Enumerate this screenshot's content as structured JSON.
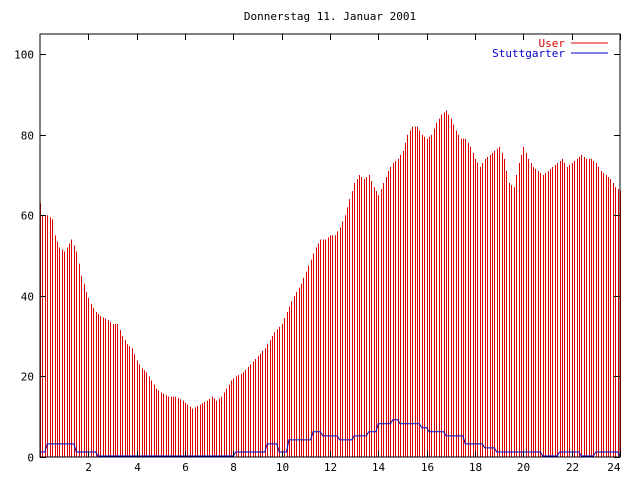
{
  "chart_data": {
    "type": "bar",
    "title": "Donnerstag 11. Januar 2001",
    "xlabel": "",
    "ylabel": "",
    "xlim": [
      0,
      24
    ],
    "ylim": [
      0,
      105
    ],
    "xticks": [
      2,
      4,
      6,
      8,
      10,
      12,
      14,
      16,
      18,
      20,
      22,
      24
    ],
    "yticks": [
      0,
      20,
      40,
      60,
      80,
      100
    ],
    "grid": false,
    "legend": "top-right",
    "x_step_hours": 0.1,
    "series": [
      {
        "name": "User",
        "type": "bar",
        "color": "#dd0000",
        "keypoints": [
          [
            0,
            63
          ],
          [
            0.1,
            60
          ],
          [
            0.3,
            60
          ],
          [
            0.5,
            59
          ],
          [
            0.6,
            55
          ],
          [
            0.8,
            52
          ],
          [
            1.0,
            51
          ],
          [
            1.2,
            53
          ],
          [
            1.3,
            54
          ],
          [
            1.5,
            51
          ],
          [
            1.7,
            45
          ],
          [
            1.9,
            41
          ],
          [
            2.1,
            38
          ],
          [
            2.3,
            36
          ],
          [
            2.5,
            35
          ],
          [
            2.8,
            34
          ],
          [
            3.0,
            33
          ],
          [
            3.2,
            33
          ],
          [
            3.4,
            30
          ],
          [
            3.6,
            28
          ],
          [
            3.8,
            27
          ],
          [
            4.0,
            24
          ],
          [
            4.2,
            22
          ],
          [
            4.4,
            21
          ],
          [
            4.6,
            19
          ],
          [
            4.8,
            17
          ],
          [
            5.0,
            16
          ],
          [
            5.3,
            15
          ],
          [
            5.6,
            15
          ],
          [
            5.9,
            14
          ],
          [
            6.1,
            13
          ],
          [
            6.3,
            12
          ],
          [
            6.6,
            13
          ],
          [
            6.9,
            14
          ],
          [
            7.1,
            15
          ],
          [
            7.3,
            14
          ],
          [
            7.5,
            15
          ],
          [
            7.7,
            17
          ],
          [
            7.9,
            19
          ],
          [
            8.1,
            20
          ],
          [
            8.4,
            21
          ],
          [
            8.7,
            23
          ],
          [
            9.0,
            25
          ],
          [
            9.3,
            27
          ],
          [
            9.5,
            29
          ],
          [
            9.7,
            31
          ],
          [
            10.0,
            33
          ],
          [
            10.2,
            36
          ],
          [
            10.5,
            40
          ],
          [
            10.8,
            43
          ],
          [
            11.0,
            46
          ],
          [
            11.2,
            49
          ],
          [
            11.4,
            52
          ],
          [
            11.6,
            54
          ],
          [
            11.8,
            54
          ],
          [
            12.0,
            55
          ],
          [
            12.2,
            55
          ],
          [
            12.4,
            57
          ],
          [
            12.6,
            60
          ],
          [
            12.8,
            64
          ],
          [
            13.0,
            68
          ],
          [
            13.2,
            70
          ],
          [
            13.4,
            69
          ],
          [
            13.6,
            70
          ],
          [
            13.8,
            67
          ],
          [
            14.0,
            65
          ],
          [
            14.2,
            68
          ],
          [
            14.4,
            71
          ],
          [
            14.6,
            73
          ],
          [
            14.8,
            74
          ],
          [
            15.0,
            76
          ],
          [
            15.2,
            80
          ],
          [
            15.4,
            82
          ],
          [
            15.6,
            82
          ],
          [
            15.8,
            80
          ],
          [
            16.0,
            79
          ],
          [
            16.2,
            80
          ],
          [
            16.4,
            83
          ],
          [
            16.6,
            85
          ],
          [
            16.8,
            86
          ],
          [
            17.0,
            84
          ],
          [
            17.2,
            81
          ],
          [
            17.4,
            79
          ],
          [
            17.6,
            79
          ],
          [
            17.8,
            77
          ],
          [
            18.0,
            74
          ],
          [
            18.2,
            72
          ],
          [
            18.4,
            74
          ],
          [
            18.6,
            75
          ],
          [
            18.8,
            76
          ],
          [
            19.0,
            77
          ],
          [
            19.2,
            74
          ],
          [
            19.4,
            68
          ],
          [
            19.6,
            67
          ],
          [
            19.8,
            73
          ],
          [
            20.0,
            77
          ],
          [
            20.2,
            74
          ],
          [
            20.4,
            72
          ],
          [
            20.6,
            71
          ],
          [
            20.8,
            70
          ],
          [
            21.0,
            71
          ],
          [
            21.2,
            72
          ],
          [
            21.4,
            73
          ],
          [
            21.6,
            74
          ],
          [
            21.8,
            72
          ],
          [
            22.0,
            73
          ],
          [
            22.2,
            74
          ],
          [
            22.4,
            75
          ],
          [
            22.6,
            74
          ],
          [
            22.8,
            74
          ],
          [
            23.0,
            73
          ],
          [
            23.2,
            71
          ],
          [
            23.4,
            70
          ],
          [
            23.6,
            69
          ],
          [
            23.8,
            67
          ],
          [
            24.0,
            66
          ]
        ]
      },
      {
        "name": "Stuttgarter",
        "type": "step",
        "color": "#0000cc",
        "keypoints": [
          [
            0,
            1
          ],
          [
            0.3,
            3
          ],
          [
            1.5,
            1
          ],
          [
            2.4,
            0
          ],
          [
            8.1,
            1
          ],
          [
            9.4,
            3
          ],
          [
            9.9,
            1
          ],
          [
            10.3,
            4
          ],
          [
            11.3,
            6
          ],
          [
            11.7,
            5
          ],
          [
            12.4,
            4
          ],
          [
            13.0,
            5
          ],
          [
            13.6,
            6
          ],
          [
            14.0,
            8
          ],
          [
            14.6,
            9
          ],
          [
            14.9,
            8
          ],
          [
            15.8,
            7
          ],
          [
            16.1,
            6
          ],
          [
            16.8,
            5
          ],
          [
            17.6,
            3
          ],
          [
            18.4,
            2
          ],
          [
            18.9,
            1
          ],
          [
            20.8,
            0
          ],
          [
            21.5,
            1
          ],
          [
            22.4,
            0
          ],
          [
            23.0,
            1
          ],
          [
            24.0,
            0
          ]
        ]
      }
    ]
  }
}
